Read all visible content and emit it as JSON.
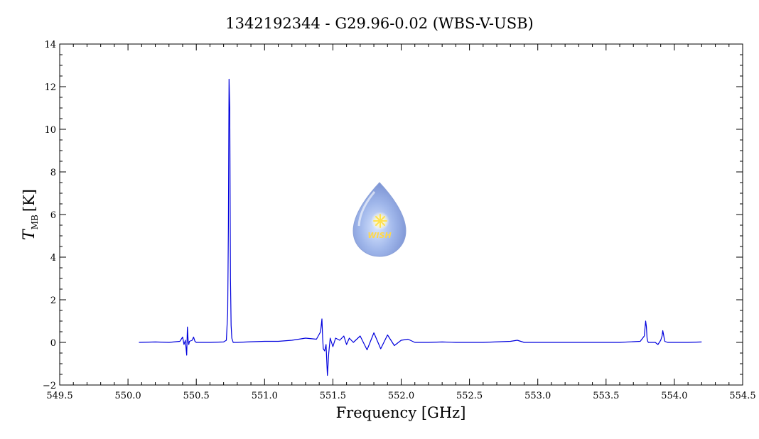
{
  "chart_data": {
    "type": "line",
    "title": "1342192344 - G29.96-0.02 (WBS-V-USB)",
    "xlabel": "Frequency [GHz]",
    "ylabel_main": "T",
    "ylabel_sub": "MB",
    "ylabel_unit": "[K]",
    "xlim": [
      549.5,
      554.5
    ],
    "ylim": [
      -2,
      14
    ],
    "x_ticks": [
      549.5,
      550.0,
      550.5,
      551.0,
      551.5,
      552.0,
      552.5,
      553.0,
      553.5,
      554.0,
      554.5
    ],
    "x_tick_labels": [
      "549.5",
      "550.0",
      "550.5",
      "551.0",
      "551.5",
      "552.0",
      "552.5",
      "553.0",
      "553.5",
      "554.0",
      "554.5"
    ],
    "y_ticks": [
      -2,
      0,
      2,
      4,
      6,
      8,
      10,
      12,
      14
    ],
    "y_tick_labels": [
      "−2",
      "0",
      "2",
      "4",
      "6",
      "8",
      "10",
      "12",
      "14"
    ],
    "grid": false,
    "series": [
      {
        "color": "#0000dd",
        "x": [
          550.08,
          550.2,
          550.3,
          550.38,
          550.4,
          550.41,
          550.42,
          550.43,
          550.435,
          550.44,
          550.445,
          550.45,
          550.47,
          550.48,
          550.49,
          550.5,
          550.6,
          550.7,
          550.72,
          550.73,
          550.735,
          550.74,
          550.745,
          550.75,
          550.755,
          550.76,
          550.77,
          550.8,
          550.9,
          551.0,
          551.1,
          551.2,
          551.3,
          551.38,
          551.41,
          551.42,
          551.425,
          551.43,
          551.44,
          551.45,
          551.46,
          551.47,
          551.48,
          551.5,
          551.52,
          551.55,
          551.58,
          551.6,
          551.62,
          551.65,
          551.7,
          551.75,
          551.8,
          551.85,
          551.9,
          551.95,
          552.0,
          552.05,
          552.1,
          552.2,
          552.3,
          552.4,
          552.5,
          552.6,
          552.8,
          552.85,
          552.9,
          553.0,
          553.2,
          553.4,
          553.6,
          553.75,
          553.78,
          553.79,
          553.795,
          553.8,
          553.805,
          553.81,
          553.82,
          553.86,
          553.88,
          553.9,
          553.91,
          553.915,
          553.92,
          553.93,
          553.95,
          554.0,
          554.1,
          554.2
        ],
        "y": [
          0.0,
          0.02,
          0.0,
          0.05,
          0.25,
          -0.1,
          0.1,
          -0.6,
          0.72,
          0.1,
          -0.1,
          0.05,
          0.1,
          0.25,
          0.05,
          0.0,
          0.0,
          0.02,
          0.1,
          1.4,
          5.5,
          12.35,
          11.0,
          3.0,
          0.8,
          0.2,
          0.0,
          0.0,
          0.03,
          0.05,
          0.05,
          0.1,
          0.2,
          0.15,
          0.5,
          1.1,
          0.2,
          -0.3,
          -0.4,
          -0.1,
          -1.55,
          -0.5,
          0.2,
          -0.2,
          0.2,
          0.1,
          0.3,
          -0.1,
          0.2,
          0.0,
          0.3,
          -0.35,
          0.45,
          -0.3,
          0.35,
          -0.15,
          0.1,
          0.15,
          0.0,
          0.0,
          0.02,
          0.0,
          0.0,
          0.0,
          0.05,
          0.1,
          0.0,
          0.0,
          0.0,
          0.0,
          0.0,
          0.05,
          0.3,
          1.0,
          0.75,
          0.2,
          0.05,
          0.0,
          0.0,
          0.0,
          -0.1,
          0.1,
          0.3,
          0.55,
          0.4,
          0.05,
          0.0,
          0.0,
          0.0,
          0.02
        ]
      }
    ]
  },
  "logo": {
    "text": "WISH"
  }
}
